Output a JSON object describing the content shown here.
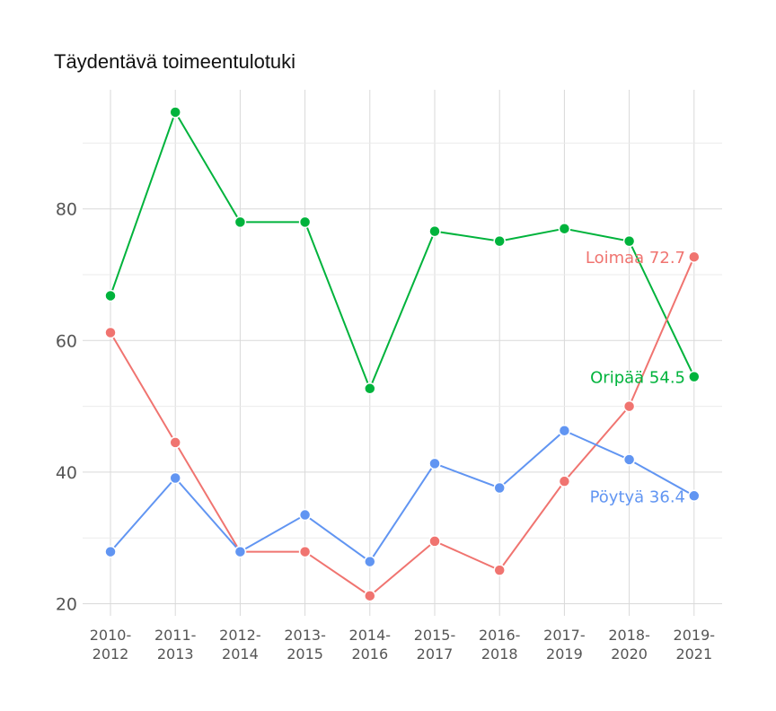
{
  "chart_data": {
    "type": "line",
    "title": "Täydentävä toimeentulotuki",
    "xlabel": "",
    "ylabel": "",
    "categories": [
      "2010-\n2012",
      "2011-\n2013",
      "2012-\n2014",
      "2013-\n2015",
      "2014-\n2016",
      "2015-\n2017",
      "2016-\n2018",
      "2017-\n2019",
      "2018-\n2020",
      "2019-\n2021"
    ],
    "ylim": [
      18,
      100
    ],
    "yticks": [
      20,
      40,
      60,
      80
    ],
    "grid": true,
    "legend": "none",
    "series": [
      {
        "name": "Oripää",
        "color": "#00b33c",
        "values": [
          66.8,
          94.7,
          78.0,
          78.0,
          52.7,
          76.6,
          75.1,
          77.0,
          75.1,
          54.5
        ],
        "end_label": "Oripää 54.5"
      },
      {
        "name": "Loimaa",
        "color": "#f07470",
        "values": [
          61.2,
          44.5,
          27.9,
          27.9,
          21.2,
          29.5,
          25.1,
          38.6,
          50.0,
          72.7
        ],
        "end_label": "Loimaa 72.7"
      },
      {
        "name": "Pöytyä",
        "color": "#6195f2",
        "values": [
          27.9,
          39.1,
          27.9,
          33.5,
          26.4,
          41.3,
          37.6,
          46.3,
          41.9,
          36.4
        ],
        "end_label": "Pöytyä 36.4"
      }
    ]
  }
}
